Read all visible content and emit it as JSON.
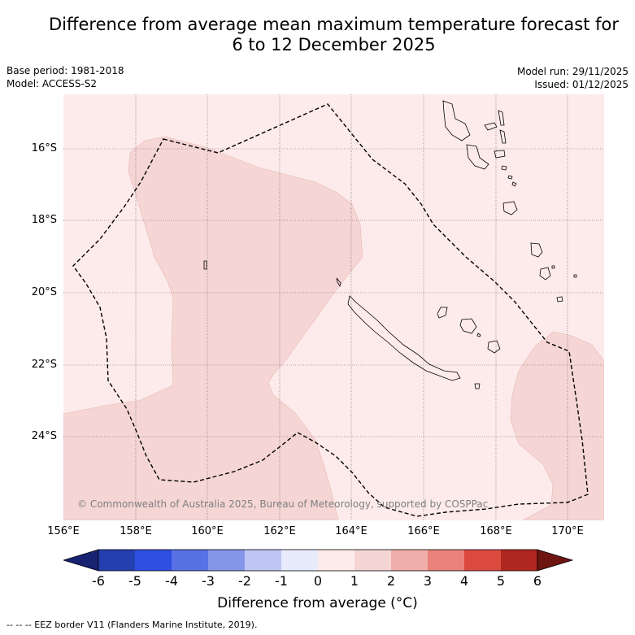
{
  "title": {
    "line1": "Difference from average mean maximum temperature forecast for",
    "line2": "6 to 12 December 2025"
  },
  "meta": {
    "base_period": "Base period: 1981-2018",
    "model": "Model: ACCESS-S2",
    "model_run": "Model run: 29/11/2025",
    "issued": "Issued: 01/12/2025"
  },
  "map": {
    "copyright": "© Commonwealth of Australia 2025, Bureau of Meteorology, supported by COSPPac",
    "lat_labels": [
      "16°S",
      "18°S",
      "20°S",
      "22°S",
      "24°S"
    ],
    "lon_labels": [
      "156°E",
      "158°E",
      "160°E",
      "162°E",
      "164°E",
      "166°E",
      "168°E",
      "170°E"
    ],
    "features": [
      "EEZ boundary",
      "New Caledonia",
      "Loyalty Islands",
      "Vanuatu",
      "Chesterfield Islands"
    ],
    "legend_classes": {
      "0_to_1": "#fcebea",
      "1_to_2": "#f5d6d5"
    }
  },
  "colorbar": {
    "ticks": [
      "-6",
      "-5",
      "-4",
      "-3",
      "-2",
      "-1",
      "0",
      "1",
      "2",
      "3",
      "4",
      "5",
      "6"
    ],
    "colors": [
      "#172270",
      "#2440b0",
      "#2e4fe0",
      "#5871e4",
      "#8596e8",
      "#bfc6f4",
      "#e8ebfb",
      "#fcebea",
      "#f5d6d5",
      "#efaea9",
      "#e8827a",
      "#dc4a3f",
      "#b0271f",
      "#6e1512"
    ],
    "label": "Difference from average (°C)"
  },
  "footer": "--  --  -- EEZ border V11 (Flanders Marine Institute, 2019)."
}
